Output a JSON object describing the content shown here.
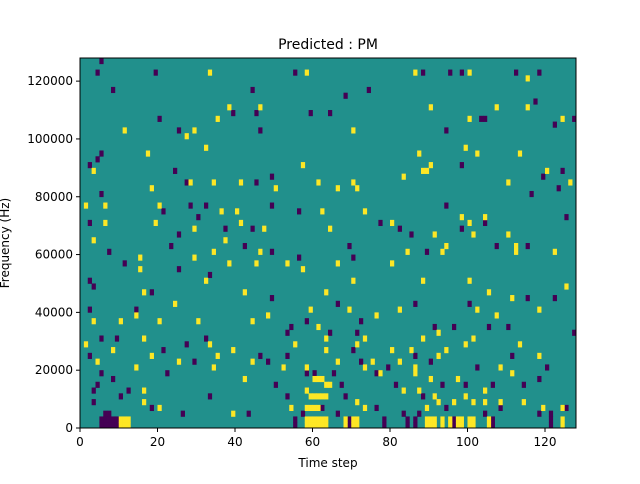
{
  "chart_data": {
    "type": "heatmap",
    "title": "Predicted : PM",
    "xlabel": "Time step",
    "ylabel": "Frequency (Hz)",
    "xlim": [
      0,
      128
    ],
    "ylim": [
      0,
      128000
    ],
    "xticks": [
      0,
      20,
      40,
      60,
      80,
      100,
      120
    ],
    "yticks": [
      0,
      20000,
      40000,
      60000,
      80000,
      100000,
      120000
    ],
    "grid": false,
    "colormap": "viridis",
    "colors": {
      "background": "#21908c",
      "low": "#440154",
      "high": "#fde725"
    },
    "background_value": 0,
    "cell_width": 1,
    "cell_height": 2000,
    "low_cells": [
      [
        5,
        126000
      ],
      [
        4,
        122000
      ],
      [
        19,
        122000
      ],
      [
        55,
        122000
      ],
      [
        88,
        122000
      ],
      [
        95,
        122000
      ],
      [
        98,
        122000
      ],
      [
        112,
        122000
      ],
      [
        118,
        122000
      ],
      [
        8,
        116000
      ],
      [
        44,
        116000
      ],
      [
        74,
        116000
      ],
      [
        68,
        114000
      ],
      [
        117,
        112000
      ],
      [
        20,
        106000
      ],
      [
        39,
        108000
      ],
      [
        45,
        108000
      ],
      [
        59,
        108000
      ],
      [
        64,
        108000
      ],
      [
        103,
        106000
      ],
      [
        104,
        106000
      ],
      [
        127,
        106000
      ],
      [
        122,
        104000
      ],
      [
        25,
        102000
      ],
      [
        46,
        102000
      ],
      [
        94,
        102000
      ],
      [
        5,
        94000
      ],
      [
        2,
        90000
      ],
      [
        4,
        92000
      ],
      [
        98,
        90000
      ],
      [
        124,
        88000
      ],
      [
        24,
        88000
      ],
      [
        49,
        86000
      ],
      [
        45,
        84000
      ],
      [
        27,
        84000
      ],
      [
        5,
        80000
      ],
      [
        116,
        80000
      ],
      [
        123,
        82000
      ],
      [
        119,
        86000
      ],
      [
        21,
        74000
      ],
      [
        28,
        76000
      ],
      [
        32,
        76000
      ],
      [
        49,
        76000
      ],
      [
        56,
        74000
      ],
      [
        94,
        76000
      ],
      [
        104,
        70000
      ],
      [
        125,
        72000
      ],
      [
        30,
        72000
      ],
      [
        44,
        68000
      ],
      [
        37,
        68000
      ],
      [
        82,
        68000
      ],
      [
        77,
        70000
      ],
      [
        85,
        66000
      ],
      [
        98,
        68000
      ],
      [
        25,
        66000
      ],
      [
        2,
        70000
      ],
      [
        23,
        62000
      ],
      [
        42,
        62000
      ],
      [
        49,
        60000
      ],
      [
        56,
        58000
      ],
      [
        70,
        58000
      ],
      [
        69,
        62000
      ],
      [
        89,
        60000
      ],
      [
        107,
        62000
      ],
      [
        115,
        62000
      ],
      [
        11,
        56000
      ],
      [
        7,
        60000
      ],
      [
        25,
        54000
      ],
      [
        33,
        52000
      ],
      [
        2,
        50000
      ],
      [
        3,
        48000
      ],
      [
        18,
        46000
      ],
      [
        49,
        44000
      ],
      [
        66,
        42000
      ],
      [
        86,
        42000
      ],
      [
        100,
        42000
      ],
      [
        115,
        44000
      ],
      [
        122,
        44000
      ],
      [
        2,
        40000
      ],
      [
        14,
        40000
      ],
      [
        54,
        34000
      ],
      [
        58,
        36000
      ],
      [
        72,
        36000
      ],
      [
        91,
        34000
      ],
      [
        96,
        34000
      ],
      [
        105,
        34000
      ],
      [
        110,
        34000
      ],
      [
        127,
        32000
      ],
      [
        5,
        30000
      ],
      [
        9,
        30000
      ],
      [
        32,
        30000
      ],
      [
        53,
        32000
      ],
      [
        64,
        32000
      ],
      [
        71,
        32000
      ],
      [
        21,
        26000
      ],
      [
        27,
        28000
      ],
      [
        2,
        24000
      ],
      [
        46,
        24000
      ],
      [
        53,
        24000
      ],
      [
        70,
        26000
      ],
      [
        86,
        24000
      ],
      [
        111,
        24000
      ],
      [
        29,
        22000
      ],
      [
        48,
        22000
      ],
      [
        72,
        22000
      ],
      [
        79,
        20000
      ],
      [
        90,
        22000
      ],
      [
        102,
        20000
      ],
      [
        120,
        20000
      ],
      [
        5,
        18000
      ],
      [
        22,
        18000
      ],
      [
        58,
        18000
      ],
      [
        60,
        18000
      ],
      [
        65,
        18000
      ],
      [
        76,
        18000
      ],
      [
        4,
        14000
      ],
      [
        8,
        16000
      ],
      [
        50,
        14000
      ],
      [
        67,
        14000
      ],
      [
        81,
        14000
      ],
      [
        93,
        14000
      ],
      [
        99,
        14000
      ],
      [
        106,
        14000
      ],
      [
        114,
        14000
      ],
      [
        118,
        16000
      ],
      [
        3,
        12000
      ],
      [
        12,
        12000
      ],
      [
        10,
        10000
      ],
      [
        33,
        10000
      ],
      [
        53,
        10000
      ],
      [
        68,
        10000
      ],
      [
        88,
        10000
      ],
      [
        3,
        8000
      ],
      [
        18,
        6000
      ],
      [
        62,
        6000
      ],
      [
        76,
        6000
      ],
      [
        94,
        6000
      ],
      [
        108,
        6000
      ],
      [
        125,
        6000
      ],
      [
        6,
        4000
      ],
      [
        7,
        4000
      ],
      [
        26,
        4000
      ],
      [
        43,
        4000
      ],
      [
        57,
        4000
      ],
      [
        66,
        4000
      ],
      [
        83,
        4000
      ],
      [
        87,
        4000
      ],
      [
        104,
        4000
      ],
      [
        118,
        4000
      ],
      [
        121,
        4000
      ],
      [
        5,
        2000
      ],
      [
        6,
        2000
      ],
      [
        7,
        2000
      ],
      [
        8,
        2000
      ],
      [
        9,
        2000
      ],
      [
        55,
        2000
      ],
      [
        69,
        2000
      ],
      [
        78,
        2000
      ],
      [
        84,
        2000
      ],
      [
        86,
        2000
      ],
      [
        96,
        2000
      ],
      [
        106,
        2000
      ],
      [
        121,
        2000
      ],
      [
        5,
        0
      ],
      [
        6,
        0
      ],
      [
        7,
        0
      ],
      [
        8,
        0
      ],
      [
        9,
        0
      ],
      [
        55,
        0
      ],
      [
        69,
        0
      ],
      [
        78,
        0
      ],
      [
        84,
        0
      ],
      [
        86,
        0
      ],
      [
        96,
        0
      ],
      [
        106,
        0
      ],
      [
        121,
        0
      ]
    ],
    "high_cells": [
      [
        33,
        122000
      ],
      [
        58,
        122000
      ],
      [
        86,
        122000
      ],
      [
        100,
        122000
      ],
      [
        115,
        120000
      ],
      [
        38,
        110000
      ],
      [
        46,
        110000
      ],
      [
        90,
        110000
      ],
      [
        107,
        110000
      ],
      [
        115,
        110000
      ],
      [
        35,
        106000
      ],
      [
        100,
        106000
      ],
      [
        124,
        106000
      ],
      [
        11,
        102000
      ],
      [
        29,
        102000
      ],
      [
        70,
        102000
      ],
      [
        32,
        96000
      ],
      [
        99,
        96000
      ],
      [
        27,
        100000
      ],
      [
        17,
        94000
      ],
      [
        87,
        94000
      ],
      [
        102,
        94000
      ],
      [
        3,
        88000
      ],
      [
        57,
        90000
      ],
      [
        90,
        90000
      ],
      [
        113,
        94000
      ],
      [
        120,
        88000
      ],
      [
        34,
        84000
      ],
      [
        41,
        84000
      ],
      [
        61,
        84000
      ],
      [
        70,
        84000
      ],
      [
        110,
        84000
      ],
      [
        83,
        86000
      ],
      [
        88,
        88000
      ],
      [
        89,
        88000
      ],
      [
        126,
        84000
      ],
      [
        1,
        76000
      ],
      [
        6,
        76000
      ],
      [
        20,
        76000
      ],
      [
        28,
        84000
      ],
      [
        18,
        82000
      ],
      [
        50,
        82000
      ],
      [
        66,
        82000
      ],
      [
        71,
        82000
      ],
      [
        36,
        74000
      ],
      [
        40,
        74000
      ],
      [
        62,
        74000
      ],
      [
        73,
        74000
      ],
      [
        98,
        72000
      ],
      [
        100,
        70000
      ],
      [
        104,
        72000
      ],
      [
        110,
        66000
      ],
      [
        112,
        62000
      ],
      [
        6,
        70000
      ],
      [
        19,
        70000
      ],
      [
        29,
        68000
      ],
      [
        37,
        64000
      ],
      [
        41,
        70000
      ],
      [
        47,
        68000
      ],
      [
        64,
        68000
      ],
      [
        80,
        70000
      ],
      [
        84,
        60000
      ],
      [
        91,
        66000
      ],
      [
        94,
        62000
      ],
      [
        101,
        66000
      ],
      [
        3,
        64000
      ],
      [
        15,
        58000
      ],
      [
        29,
        58000
      ],
      [
        34,
        60000
      ],
      [
        38,
        56000
      ],
      [
        45,
        56000
      ],
      [
        53,
        56000
      ],
      [
        57,
        54000
      ],
      [
        66,
        56000
      ],
      [
        80,
        56000
      ],
      [
        93,
        60000
      ],
      [
        112,
        60000
      ],
      [
        122,
        60000
      ],
      [
        15,
        54000
      ],
      [
        46,
        60000
      ],
      [
        16,
        46000
      ],
      [
        32,
        50000
      ],
      [
        42,
        46000
      ],
      [
        63,
        46000
      ],
      [
        70,
        50000
      ],
      [
        88,
        50000
      ],
      [
        100,
        50000
      ],
      [
        105,
        46000
      ],
      [
        111,
        44000
      ],
      [
        125,
        48000
      ],
      [
        14,
        38000
      ],
      [
        24,
        42000
      ],
      [
        44,
        36000
      ],
      [
        48,
        38000
      ],
      [
        59,
        40000
      ],
      [
        69,
        40000
      ],
      [
        82,
        40000
      ],
      [
        76,
        38000
      ],
      [
        102,
        40000
      ],
      [
        107,
        38000
      ],
      [
        118,
        40000
      ],
      [
        3,
        36000
      ],
      [
        10,
        36000
      ],
      [
        20,
        36000
      ],
      [
        30,
        36000
      ],
      [
        61,
        34000
      ],
      [
        63,
        30000
      ],
      [
        71,
        28000
      ],
      [
        73,
        30000
      ],
      [
        85,
        26000
      ],
      [
        88,
        30000
      ],
      [
        92,
        32000
      ],
      [
        94,
        26000
      ],
      [
        99,
        28000
      ],
      [
        101,
        30000
      ],
      [
        113,
        28000
      ],
      [
        1,
        28000
      ],
      [
        8,
        26000
      ],
      [
        16,
        30000
      ],
      [
        18,
        24000
      ],
      [
        33,
        28000
      ],
      [
        35,
        24000
      ],
      [
        39,
        26000
      ],
      [
        55,
        28000
      ],
      [
        63,
        26000
      ],
      [
        66,
        22000
      ],
      [
        75,
        22000
      ],
      [
        80,
        26000
      ],
      [
        82,
        22000
      ],
      [
        86,
        20000
      ],
      [
        92,
        24000
      ],
      [
        108,
        20000
      ],
      [
        118,
        24000
      ],
      [
        4,
        22000
      ],
      [
        14,
        20000
      ],
      [
        25,
        22000
      ],
      [
        34,
        20000
      ],
      [
        44,
        22000
      ],
      [
        52,
        20000
      ],
      [
        58,
        20000
      ],
      [
        60,
        16000
      ],
      [
        61,
        16000
      ],
      [
        62,
        16000
      ],
      [
        63,
        14000
      ],
      [
        64,
        14000
      ],
      [
        73,
        20000
      ],
      [
        77,
        18000
      ],
      [
        86,
        18000
      ],
      [
        90,
        16000
      ],
      [
        97,
        16000
      ],
      [
        111,
        18000
      ],
      [
        16,
        12000
      ],
      [
        42,
        16000
      ],
      [
        58,
        12000
      ],
      [
        59,
        10000
      ],
      [
        60,
        10000
      ],
      [
        61,
        10000
      ],
      [
        62,
        10000
      ],
      [
        63,
        10000
      ],
      [
        83,
        12000
      ],
      [
        87,
        12000
      ],
      [
        91,
        10000
      ],
      [
        99,
        10000
      ],
      [
        104,
        12000
      ],
      [
        104,
        8000
      ],
      [
        114,
        8000
      ],
      [
        16,
        8000
      ],
      [
        20,
        6000
      ],
      [
        39,
        4000
      ],
      [
        54,
        6000
      ],
      [
        58,
        6000
      ],
      [
        59,
        6000
      ],
      [
        60,
        6000
      ],
      [
        61,
        6000
      ],
      [
        71,
        8000
      ],
      [
        73,
        6000
      ],
      [
        89,
        6000
      ],
      [
        92,
        8000
      ],
      [
        96,
        8000
      ],
      [
        101,
        8000
      ],
      [
        108,
        8000
      ],
      [
        124,
        6000
      ],
      [
        119,
        6000
      ],
      [
        10,
        2000
      ],
      [
        11,
        2000
      ],
      [
        12,
        2000
      ],
      [
        58,
        2000
      ],
      [
        59,
        2000
      ],
      [
        60,
        2000
      ],
      [
        61,
        2000
      ],
      [
        62,
        2000
      ],
      [
        63,
        2000
      ],
      [
        68,
        2000
      ],
      [
        70,
        2000
      ],
      [
        71,
        2000
      ],
      [
        89,
        2000
      ],
      [
        90,
        2000
      ],
      [
        91,
        2000
      ],
      [
        93,
        2000
      ],
      [
        95,
        2000
      ],
      [
        97,
        2000
      ],
      [
        98,
        2000
      ],
      [
        100,
        2000
      ],
      [
        101,
        2000
      ],
      [
        105,
        2000
      ],
      [
        124,
        2000
      ],
      [
        10,
        0
      ],
      [
        11,
        0
      ],
      [
        12,
        0
      ],
      [
        58,
        0
      ],
      [
        59,
        0
      ],
      [
        60,
        0
      ],
      [
        61,
        0
      ],
      [
        62,
        0
      ],
      [
        63,
        0
      ],
      [
        68,
        0
      ],
      [
        70,
        0
      ],
      [
        71,
        0
      ],
      [
        89,
        0
      ],
      [
        90,
        0
      ],
      [
        91,
        0
      ],
      [
        93,
        0
      ],
      [
        95,
        0
      ],
      [
        97,
        0
      ],
      [
        98,
        0
      ],
      [
        100,
        0
      ],
      [
        101,
        0
      ],
      [
        105,
        0
      ],
      [
        124,
        0
      ]
    ]
  }
}
